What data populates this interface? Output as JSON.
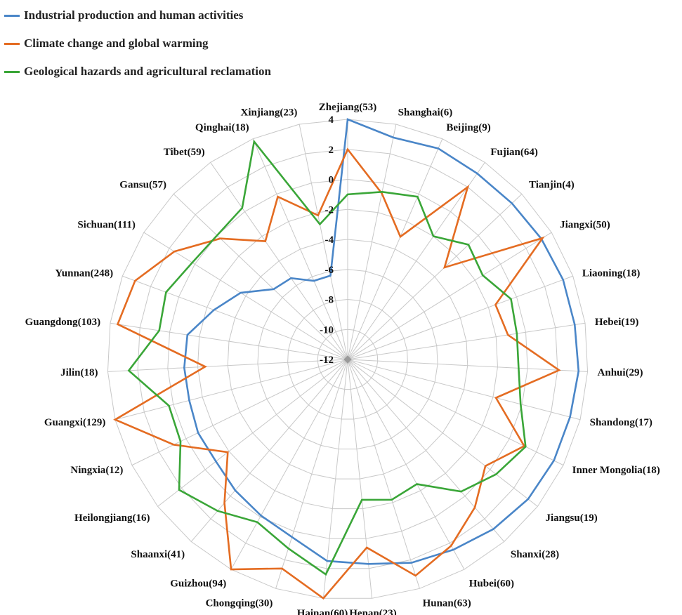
{
  "chart_data": {
    "type": "radar",
    "title": "",
    "categories": [
      "Zhejiang(53)",
      "Shanghai(6)",
      "Beijing(9)",
      "Fujian(64)",
      "Tianjin(4)",
      "Jiangxi(50)",
      "Liaoning(18)",
      "Hebei(19)",
      "Anhui(29)",
      "Shandong(17)",
      "Inner Mongolia(18)",
      "Jiangsu(19)",
      "Shanxi(28)",
      "Hubei(60)",
      "Hunan(63)",
      "Henan(23)",
      "Hainan(60)",
      "Chongqing(30)",
      "Guizhou(94)",
      "Shaanxi(41)",
      "Heilongjiang(16)",
      "Ningxia(12)",
      "Guangxi(129)",
      "Jilin(18)",
      "Guangdong(103)",
      "Yunnan(248)",
      "Sichuan(111)",
      "Gansu(57)",
      "Tibet(59)",
      "Qinghai(18)",
      "Xinjiang(23)"
    ],
    "radial_ticks": [
      4,
      2,
      0,
      -2,
      -4,
      -6,
      -8,
      -10,
      -12
    ],
    "rlim": [
      -12,
      4
    ],
    "grid": true,
    "legend_position": "top-left",
    "series": [
      {
        "name": "Industrial production and human activities",
        "color": "#4a86c8",
        "values": [
          4,
          3.1,
          3.3,
          3.1,
          3.1,
          3.2,
          3.3,
          3.3,
          3.4,
          3.3,
          3.3,
          3.2,
          2.9,
          2.5,
          2.2,
          1.7,
          1.5,
          0.4,
          -0.1,
          -0.5,
          -0.9,
          -0.9,
          -1.1,
          -1.1,
          -1.2,
          -2.5,
          -3.6,
          -5.2,
          -5.4,
          -6.3,
          -6.3
        ]
      },
      {
        "name": "Climate change and global warming",
        "color": "#e46c22",
        "values": [
          2,
          -0.7,
          -3.1,
          2.0,
          -3.1,
          3.3,
          -1.5,
          -1.2,
          2.1,
          -1.8,
          1.1,
          -0.4,
          1.0,
          2.2,
          3.1,
          0.6,
          4.0,
          2.6,
          4.0,
          0.6,
          -1.9,
          0.9,
          4.0,
          -2.5,
          3.5,
          3.1,
          1.6,
          -0.3,
          -2.4,
          -0.2,
          -2.2
        ]
      },
      {
        "name": "Geological hazards and agricultural reclamation",
        "color": "#3aa638",
        "values": [
          -1,
          -0.6,
          -0.2,
          -2.0,
          -0.9,
          -1.4,
          -0.4,
          -0.6,
          -0.6,
          -0.1,
          1.2,
          0.5,
          -0.4,
          -2.5,
          -2.2,
          -2.6,
          2.4,
          1.2,
          0.4,
          1.3,
          2.2,
          0.4,
          0.3,
          2.6,
          0.7,
          0.9,
          0.2,
          0.0,
          0.3,
          3.8,
          -2.8
        ]
      }
    ]
  }
}
